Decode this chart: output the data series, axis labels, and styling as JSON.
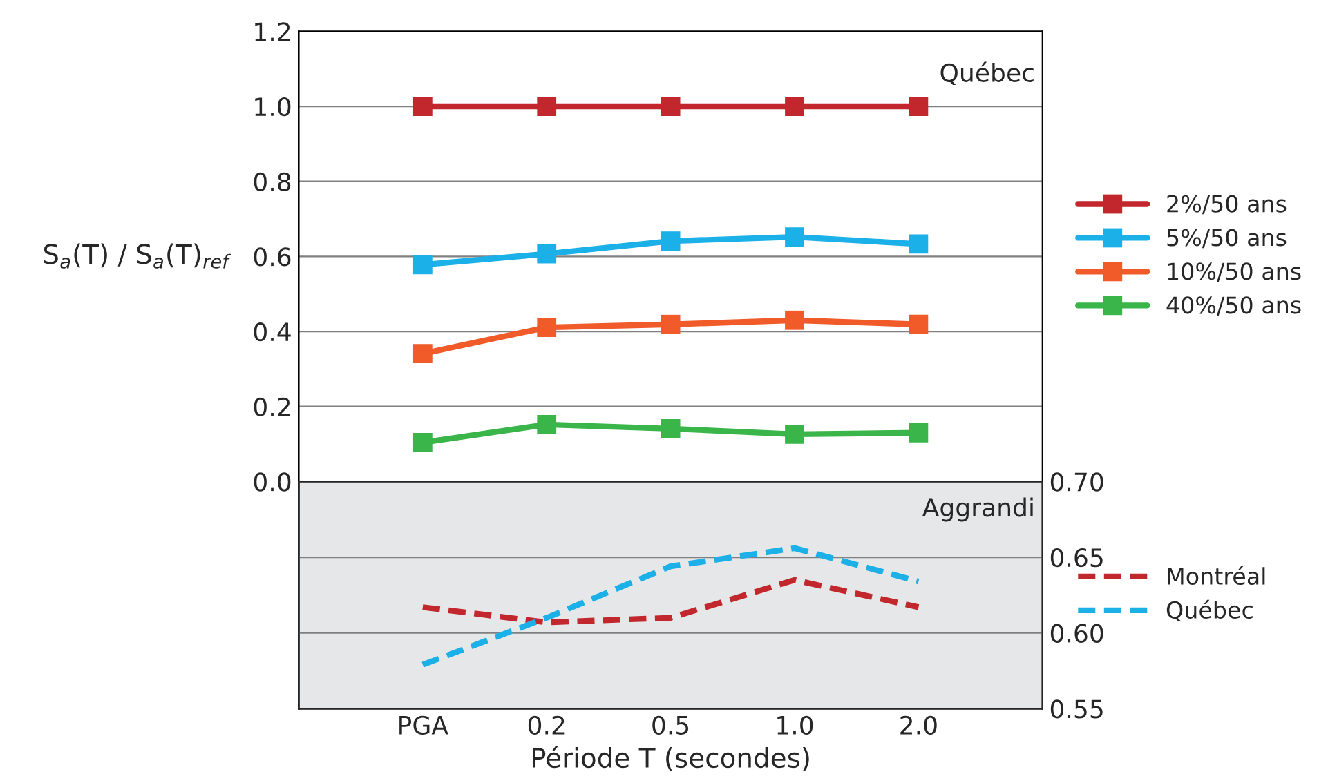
{
  "chart_data": [
    {
      "type": "line",
      "categories": [
        null,
        null,
        null,
        null,
        null
      ],
      "ylabel": "S$_{a}$(T) / S$_{a}$(T)$_{ref}$",
      "ylim": [
        0.0,
        1.2
      ],
      "yticks": [
        {
          "value": 0,
          "label": "0.0"
        },
        0.2,
        0.4,
        0.6,
        0.8,
        {
          "value": 1,
          "label": "1.0"
        },
        1.2
      ],
      "grid": "y",
      "marker": "square",
      "line_style": "solid",
      "legend": "right",
      "tick_labels": "y",
      "annotations": [
        "Québec"
      ],
      "series": [
        {
          "name": "2%/50 ans",
          "color": "#c1272d",
          "values": [
            1.0,
            1.0,
            1.0,
            1.0,
            1.0
          ]
        },
        {
          "name": "5%/50 ans",
          "color": "#1cb0e8",
          "values": [
            0.578,
            0.607,
            0.641,
            0.652,
            0.633
          ]
        },
        {
          "name": "10%/50 ans",
          "color": "#f15a29",
          "values": [
            0.341,
            0.411,
            0.419,
            0.43,
            0.419
          ]
        },
        {
          "name": "40%/50 ans",
          "color": "#39b54a",
          "values": [
            0.104,
            0.152,
            0.141,
            0.126,
            0.13
          ]
        }
      ]
    },
    {
      "type": "line",
      "categories": [
        "PGA",
        "0.2",
        "0.5",
        "1.0",
        "2.0"
      ],
      "xlabel": "Période T (secondes)",
      "y2lim": [
        0.55,
        0.7
      ],
      "y2ticks": [
        0.55,
        {
          "value": 0.6,
          "label": "0.60"
        },
        0.65,
        {
          "value": 0.7,
          "label": "0.70"
        }
      ],
      "grid": "y",
      "line_style": "dashed",
      "legend": "right",
      "annotations": [
        "Aggrandi"
      ],
      "series": [
        {
          "name": "Montréal",
          "color": "#c1272d",
          "axis": "y2",
          "values": [
            0.617,
            0.607,
            0.61,
            0.635,
            0.617
          ]
        },
        {
          "name": "Québec",
          "color": "#1cb0e8",
          "axis": "y2",
          "values": [
            0.579,
            0.61,
            0.644,
            0.656,
            0.634
          ]
        }
      ]
    }
  ]
}
